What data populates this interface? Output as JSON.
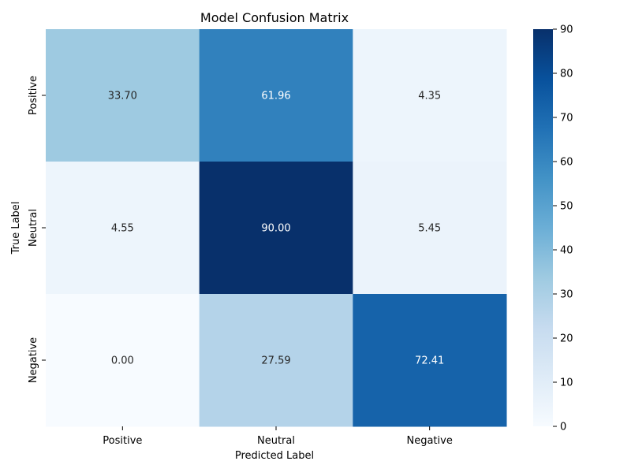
{
  "chart_data": {
    "type": "heatmap",
    "title": "Model Confusion Matrix",
    "xlabel": "Predicted Label",
    "ylabel": "True Label",
    "x_categories": [
      "Positive",
      "Neutral",
      "Negative"
    ],
    "y_categories": [
      "Positive",
      "Neutral",
      "Negative"
    ],
    "values": [
      [
        33.7,
        61.96,
        4.35
      ],
      [
        4.55,
        90.0,
        5.45
      ],
      [
        0.0,
        27.59,
        72.41
      ]
    ],
    "value_labels": [
      [
        "33.70",
        "61.96",
        "4.35"
      ],
      [
        "4.55",
        "90.00",
        "5.45"
      ],
      [
        "0.00",
        "27.59",
        "72.41"
      ]
    ],
    "colorbar": {
      "min": 0,
      "max": 90,
      "ticks": [
        0,
        10,
        20,
        30,
        40,
        50,
        60,
        70,
        80,
        90
      ],
      "colormap": "Blues"
    },
    "grid": false
  }
}
